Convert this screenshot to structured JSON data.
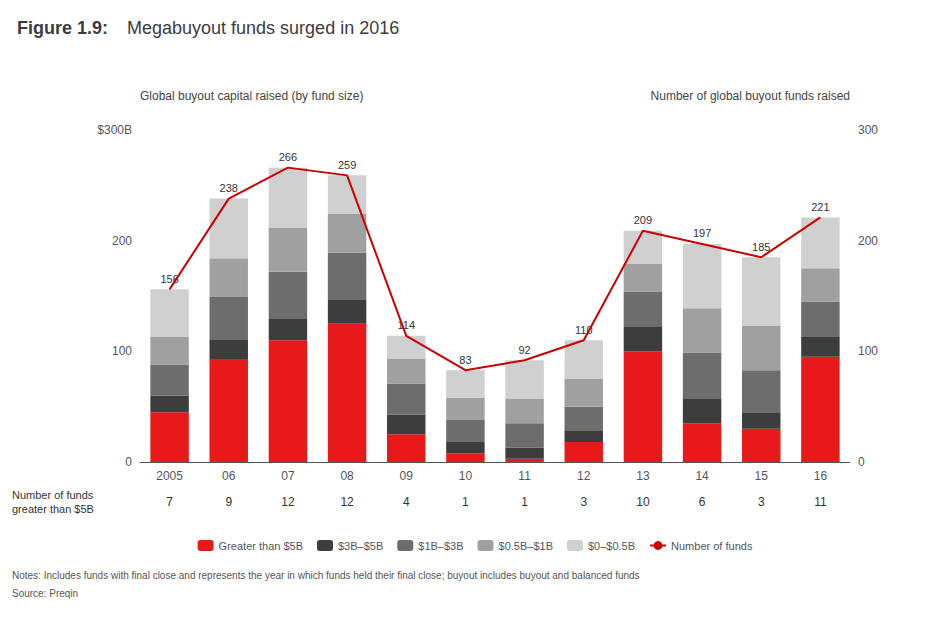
{
  "chart_data": {
    "type": "bar",
    "title": "Figure 1.9:",
    "subtitle": "Megabuyout funds surged in 2016",
    "categories": [
      "2005",
      "06",
      "07",
      "08",
      "09",
      "10",
      "11",
      "12",
      "13",
      "14",
      "15",
      "16"
    ],
    "ylabel": "Global buyout capital raised (by fund size)",
    "y2label": "Number of global buyout funds raised",
    "ylim": [
      0,
      300
    ],
    "yticks": [
      0,
      100,
      200,
      {
        "value": 300,
        "label": "$300B"
      }
    ],
    "y2lim": [
      0,
      300
    ],
    "y2ticks": [
      0,
      100,
      200,
      300
    ],
    "stacked": true,
    "grid": false,
    "legend": "bottom",
    "series": [
      {
        "name": "Greater than $5B",
        "color": "#e8191a",
        "values": [
          45,
          93,
          110,
          125,
          25,
          8,
          3,
          18,
          100,
          35,
          30,
          95
        ]
      },
      {
        "name": "$3B–$5B",
        "color": "#3d3d3d",
        "values": [
          15,
          18,
          20,
          22,
          18,
          10,
          10,
          10,
          22,
          22,
          15,
          18
        ]
      },
      {
        "name": "$1B–$3B",
        "color": "#6d6d6d",
        "values": [
          28,
          38,
          42,
          42,
          28,
          20,
          22,
          22,
          32,
          42,
          38,
          32
        ]
      },
      {
        "name": "$0.5B–$1B",
        "color": "#a0a0a0",
        "values": [
          25,
          35,
          40,
          35,
          22,
          20,
          22,
          25,
          25,
          40,
          40,
          30
        ]
      },
      {
        "name": "$0–$0.5B",
        "color": "#d0d0d0",
        "values": [
          43,
          54,
          54,
          35,
          21,
          25,
          35,
          35,
          30,
          58,
          62,
          46
        ]
      },
      {
        "name": "Number of funds",
        "type": "line",
        "axis": "y2",
        "color": "#cc0000",
        "values": [
          156,
          238,
          266,
          259,
          114,
          83,
          92,
          110,
          209,
          197,
          185,
          221
        ]
      }
    ],
    "totals": [
      156,
      238,
      266,
      259,
      114,
      83,
      92,
      110,
      209,
      197,
      185,
      221
    ],
    "fund_counts": [
      7,
      9,
      12,
      12,
      4,
      1,
      1,
      3,
      10,
      6,
      3,
      11
    ],
    "fund_counts_label": "Number of funds\ngreater than $5B",
    "note": "Notes: Includes funds with final close and represents the year in which funds held their final close; buyout includes buyout and balanced funds",
    "source": "Source: Preqin"
  }
}
